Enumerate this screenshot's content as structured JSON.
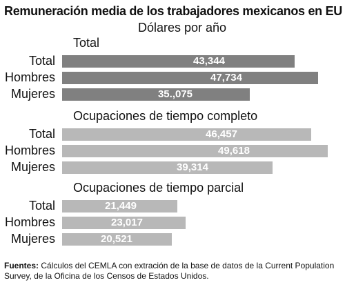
{
  "chart_data": {
    "type": "bar",
    "orientation": "horizontal",
    "title": "Remuneración media de los trabajadores mexicanos en EU",
    "subtitle": "Dólares por año",
    "xlim": [
      0,
      51000
    ],
    "grid": false,
    "groups": [
      {
        "name": "Total",
        "color": "#808080",
        "categories": [
          "Total",
          "Hombres",
          "Mujeres"
        ],
        "values": [
          43344,
          47734,
          35075
        ],
        "labels": [
          "43,344",
          "47,734",
          "35.,075"
        ]
      },
      {
        "name": "Ocupaciones de tiempo completo",
        "color": "#b8b8b8",
        "categories": [
          "Total",
          "Hombres",
          "Mujeres"
        ],
        "values": [
          46457,
          49618,
          39314
        ],
        "labels": [
          "46,457",
          "49,618",
          "39,314"
        ]
      },
      {
        "name": "Ocupaciones de tiempo parcial",
        "color": "#b8b8b8",
        "categories": [
          "Total",
          "Hombres",
          "Mujeres"
        ],
        "values": [
          21449,
          23017,
          20521
        ],
        "labels": [
          "21,449",
          "23,017",
          "20,521"
        ]
      }
    ]
  },
  "footer": {
    "label": "Fuentes:",
    "text": " Cálculos del CEMLA con extración de la base de datos de la Current Population Survey, de la Oficina de los Censos de Estados Unidos."
  }
}
